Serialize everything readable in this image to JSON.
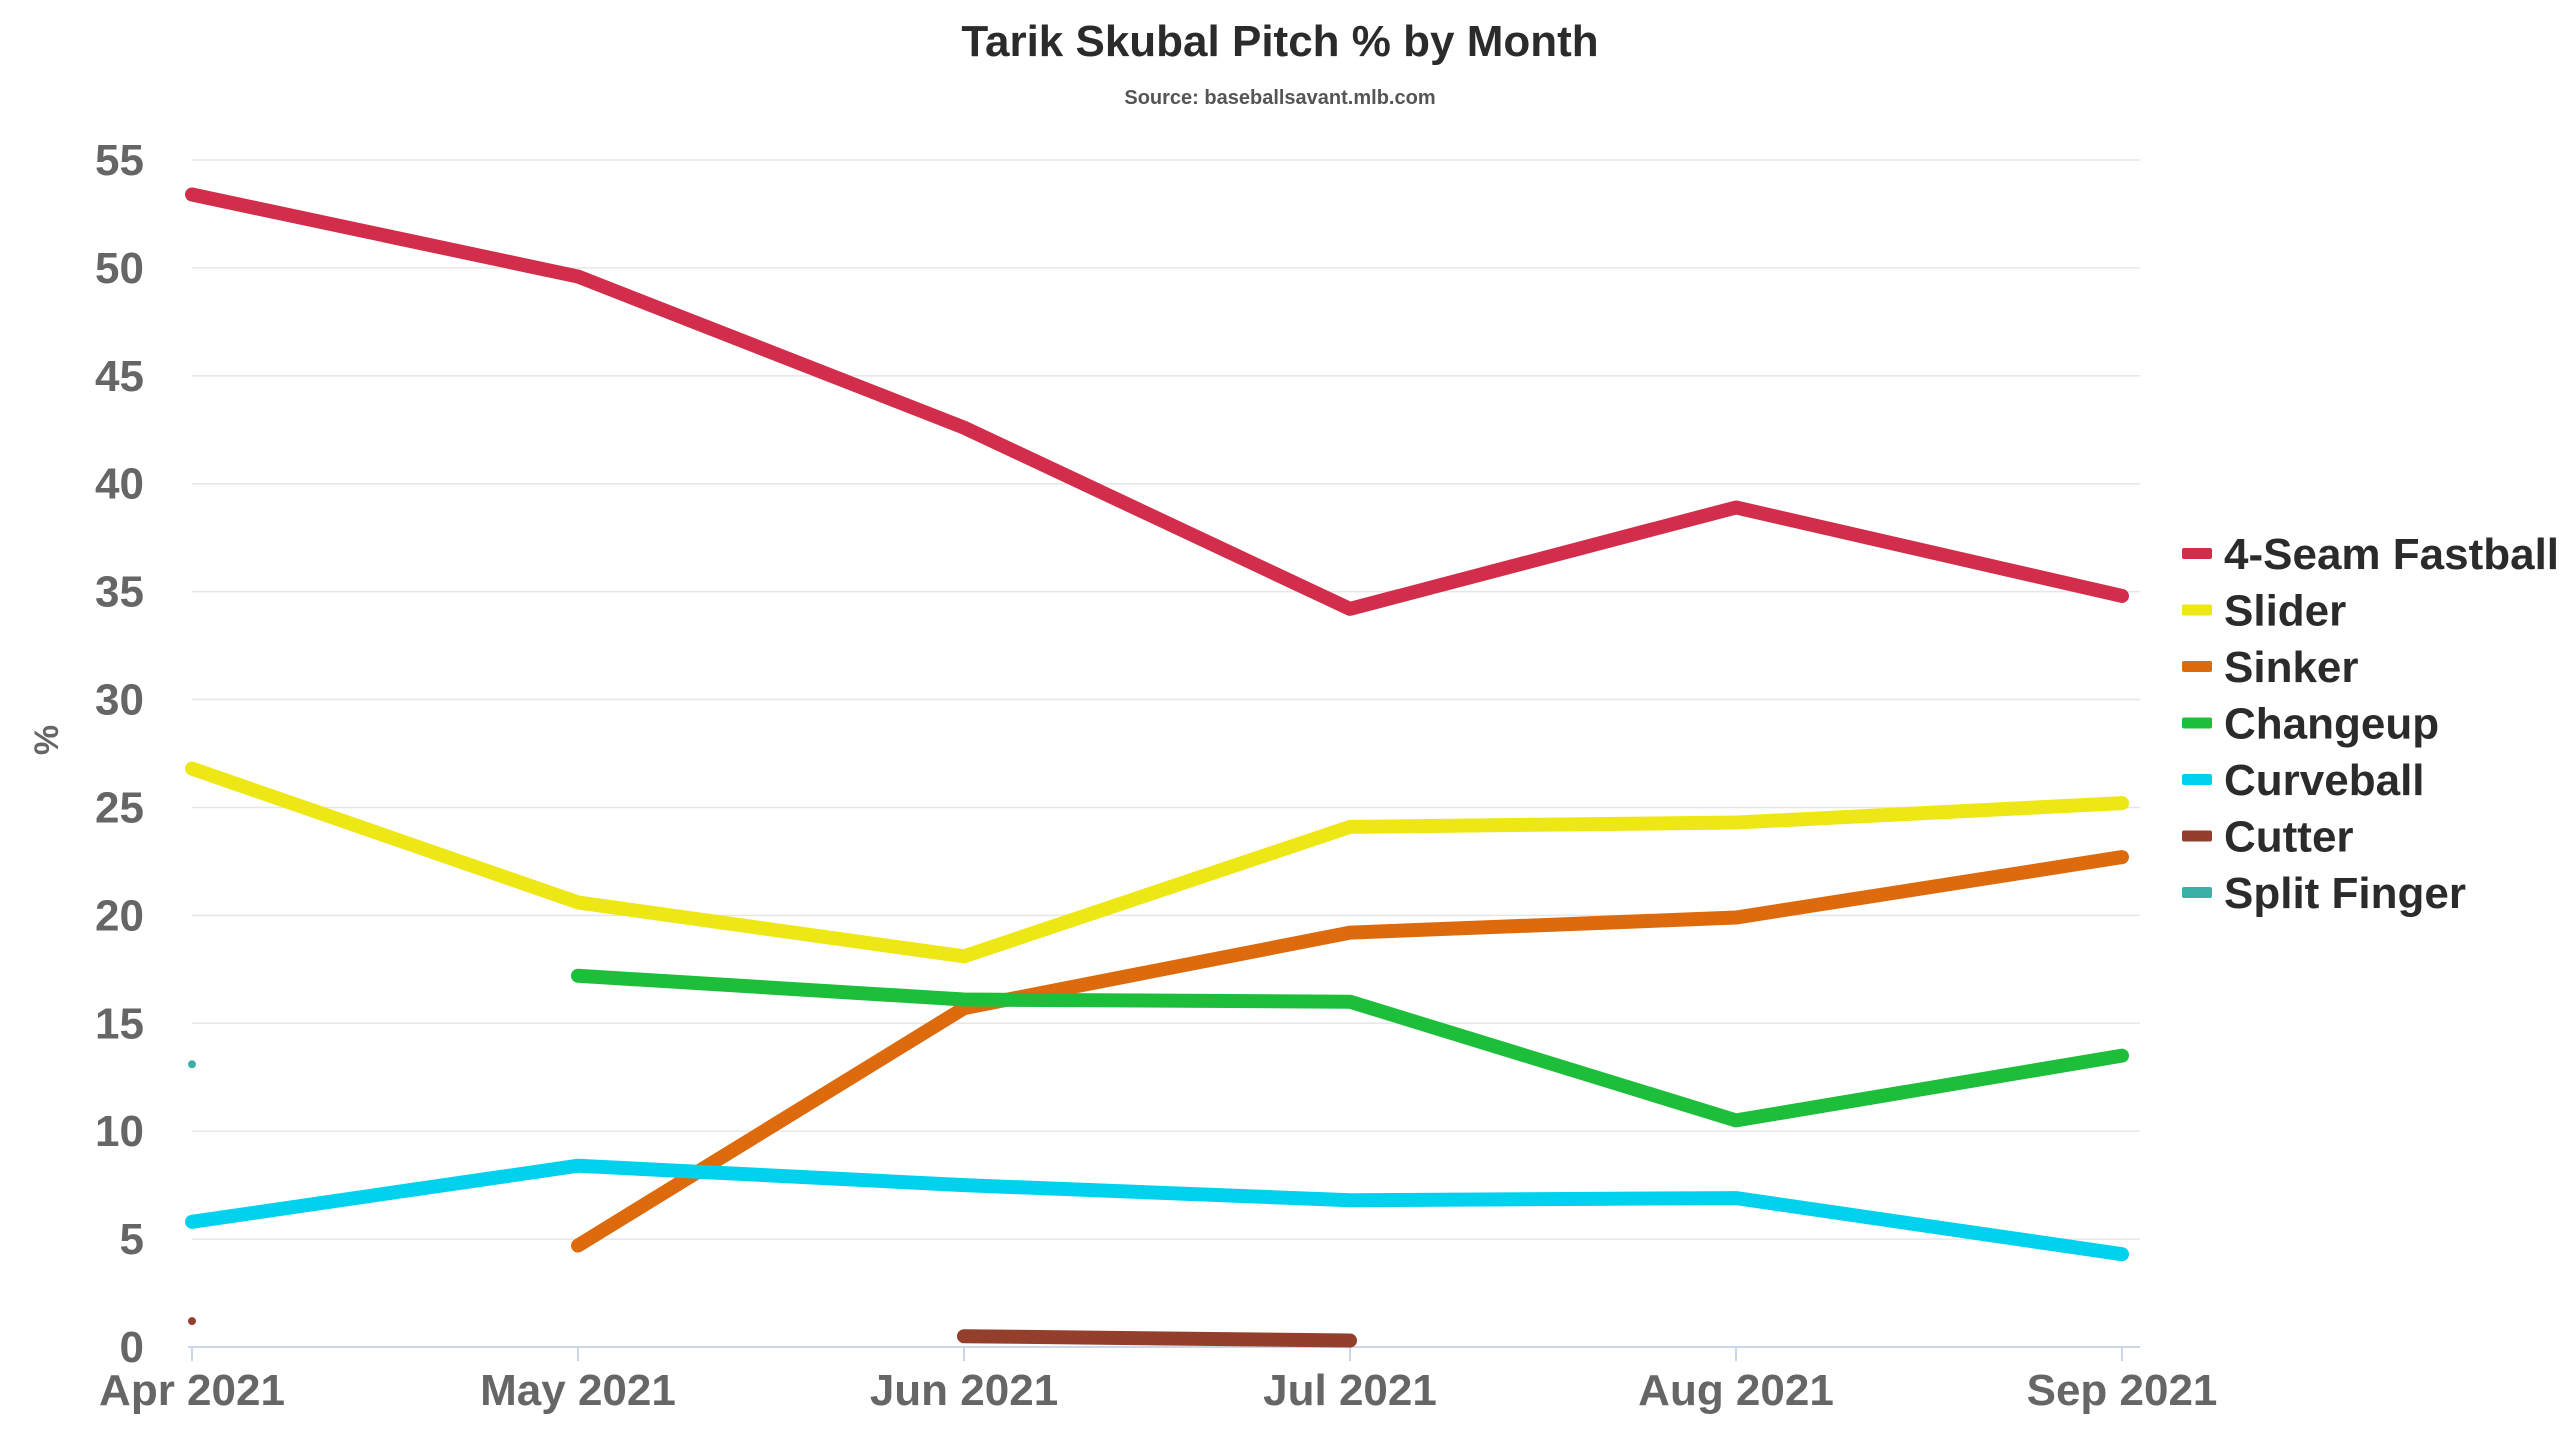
{
  "chart_data": {
    "type": "line",
    "title": "Tarik Skubal Pitch % by Month",
    "subtitle": "Source: baseballsavant.mlb.com",
    "ylabel": "%",
    "xlabel": "",
    "categories": [
      "Apr 2021",
      "May 2021",
      "Jun 2021",
      "Jul 2021",
      "Aug 2021",
      "Sep 2021"
    ],
    "ylim": [
      0,
      55
    ],
    "yticks": [
      0,
      5,
      10,
      15,
      20,
      25,
      30,
      35,
      40,
      45,
      50,
      55
    ],
    "grid": true,
    "legend_position": "right",
    "series": [
      {
        "name": "4-Seam Fastball",
        "color": "#d22e4c",
        "values": [
          53.4,
          49.6,
          42.6,
          34.2,
          38.9,
          34.8
        ]
      },
      {
        "name": "Slider",
        "color": "#eee716",
        "values": [
          26.8,
          20.6,
          18.1,
          24.1,
          24.3,
          25.2
        ]
      },
      {
        "name": "Sinker",
        "color": "#dd6a0c",
        "values": [
          null,
          4.7,
          15.7,
          19.2,
          19.9,
          22.7
        ]
      },
      {
        "name": "Changeup",
        "color": "#1dbe3a",
        "values": [
          null,
          17.2,
          16.1,
          16.0,
          10.5,
          13.5
        ]
      },
      {
        "name": "Curveball",
        "color": "#00d1ed",
        "values": [
          5.8,
          8.4,
          7.5,
          6.8,
          6.9,
          4.3
        ]
      },
      {
        "name": "Cutter",
        "color": "#933f2c",
        "values": [
          1.2,
          null,
          0.5,
          0.3,
          null,
          null
        ]
      },
      {
        "name": "Split Finger",
        "color": "#3bb0a6",
        "values": [
          13.1,
          null,
          null,
          null,
          null,
          null
        ]
      }
    ]
  }
}
